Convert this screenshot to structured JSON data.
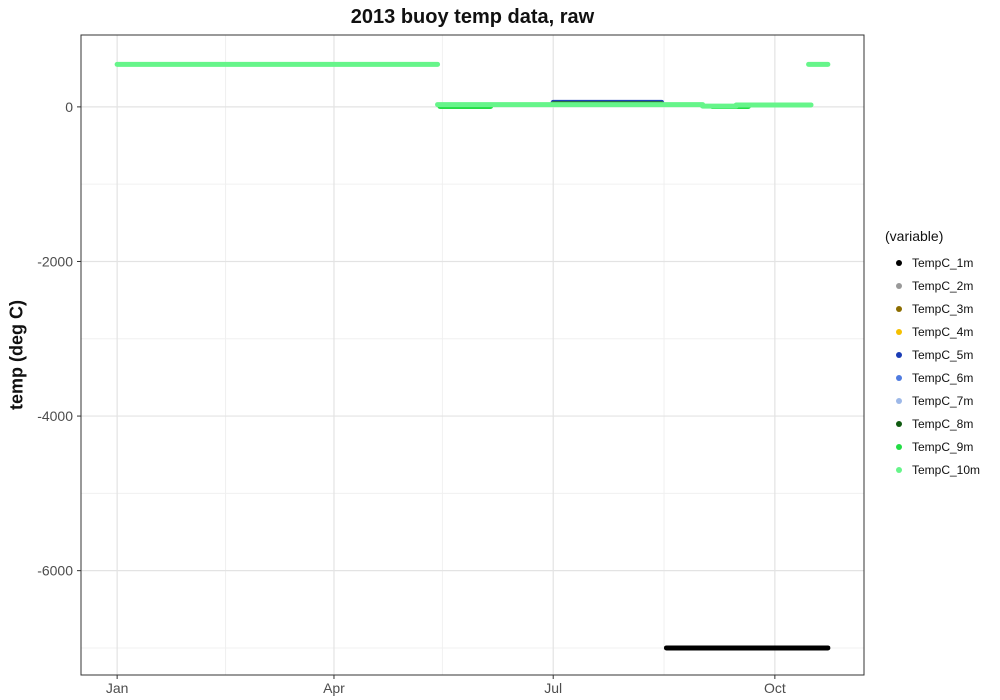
{
  "chart_data": {
    "type": "scatter",
    "title": "2013 buoy temp data, raw",
    "xlabel": "",
    "ylabel": "temp (deg C)",
    "x_axis": {
      "type": "date",
      "range": [
        "2012-12-17",
        "2013-11-07"
      ],
      "ticks": [
        {
          "value": "2013-01-01",
          "label": "Jan"
        },
        {
          "value": "2013-04-01",
          "label": "Apr"
        },
        {
          "value": "2013-07-01",
          "label": "Jul"
        },
        {
          "value": "2013-10-01",
          "label": "Oct"
        }
      ],
      "minor_ticks": [
        "2013-02-15",
        "2013-05-16",
        "2013-08-16"
      ]
    },
    "y_axis": {
      "range": [
        -7350,
        930
      ],
      "ticks": [
        0,
        -2000,
        -4000,
        -6000
      ],
      "tick_labels": [
        "0",
        "-2000",
        "-4000",
        "-6000"
      ],
      "minor_ticks": [
        -1000,
        -3000,
        -5000,
        -7000
      ]
    },
    "grid": true,
    "legend": {
      "title": "(variable)",
      "position": "right"
    },
    "series": [
      {
        "name": "TempC_1m",
        "color": "#000000",
        "segments": [
          {
            "start": "2013-08-17",
            "end": "2013-10-23",
            "value": -7000
          }
        ]
      },
      {
        "name": "TempC_2m",
        "color": "#999999",
        "segments": [
          {
            "start": "2013-07-01",
            "end": "2013-08-15",
            "value": 55
          }
        ]
      },
      {
        "name": "TempC_3m",
        "color": "#8c6d00",
        "segments": [
          {
            "start": "2013-07-01",
            "end": "2013-08-15",
            "value": 52
          }
        ]
      },
      {
        "name": "TempC_4m",
        "color": "#f5c000",
        "segments": [
          {
            "start": "2013-07-01",
            "end": "2013-08-15",
            "value": 50
          }
        ]
      },
      {
        "name": "TempC_5m",
        "color": "#1a3cb5",
        "segments": [
          {
            "start": "2013-07-01",
            "end": "2013-08-15",
            "value": 58
          }
        ]
      },
      {
        "name": "TempC_6m",
        "color": "#4f7be0",
        "segments": [
          {
            "start": "2013-07-01",
            "end": "2013-08-15",
            "value": 45
          }
        ]
      },
      {
        "name": "TempC_7m",
        "color": "#9db8e8",
        "segments": [
          {
            "start": "2013-07-01",
            "end": "2013-08-15",
            "value": 42
          }
        ]
      },
      {
        "name": "TempC_8m",
        "color": "#0f5a10",
        "segments": [
          {
            "start": "2013-07-01",
            "end": "2013-08-15",
            "value": 40
          }
        ]
      },
      {
        "name": "TempC_9m",
        "color": "#22dd44",
        "segments": [
          {
            "start": "2013-05-15",
            "end": "2013-06-05",
            "value": 5
          },
          {
            "start": "2013-09-05",
            "end": "2013-09-20",
            "value": 5
          }
        ]
      },
      {
        "name": "TempC_10m",
        "color": "#66f58a",
        "segments": [
          {
            "start": "2013-01-01",
            "end": "2013-05-14",
            "value": 550
          },
          {
            "start": "2013-05-14",
            "end": "2013-09-01",
            "value": 30
          },
          {
            "start": "2013-09-01",
            "end": "2013-09-15",
            "value": 10
          },
          {
            "start": "2013-09-15",
            "end": "2013-10-16",
            "value": 25
          },
          {
            "start": "2013-10-15",
            "end": "2013-10-23",
            "value": 550
          }
        ]
      }
    ]
  }
}
